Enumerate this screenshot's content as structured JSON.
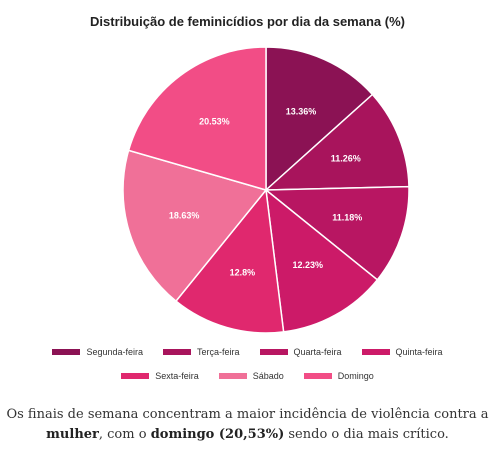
{
  "chart_data": {
    "type": "pie",
    "title": "Distribuição de feminicídios por dia da semana (%)",
    "slices": [
      {
        "label": "Segunda-feira",
        "value": 13.36,
        "display": "13.36%",
        "color": "#8b1254"
      },
      {
        "label": "Terça-feira",
        "value": 11.26,
        "display": "11.26%",
        "color": "#a8145c"
      },
      {
        "label": "Quarta-feira",
        "value": 11.18,
        "display": "11.18%",
        "color": "#b81662"
      },
      {
        "label": "Quinta-feira",
        "value": 12.23,
        "display": "12.23%",
        "color": "#cc1a68"
      },
      {
        "label": "Sexta-feira",
        "value": 12.8,
        "display": "12.8%",
        "color": "#e0286e"
      },
      {
        "label": "Sábado",
        "value": 18.63,
        "display": "18.63%",
        "color": "#f07098"
      },
      {
        "label": "Domingo",
        "value": 20.53,
        "display": "20.53%",
        "color": "#f24d86"
      }
    ],
    "legend_position": "bottom"
  },
  "caption": {
    "part1": "Os finais de semana concentram a maior incidência de violência contra a ",
    "bold1": "mulher",
    "part2": ", com o ",
    "bold2": "domingo (20,53%)",
    "part3": " sendo o dia mais crítico."
  }
}
